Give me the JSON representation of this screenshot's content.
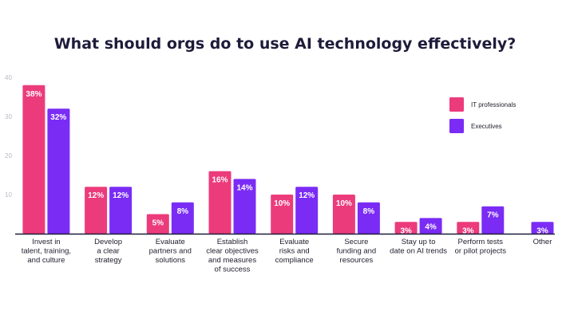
{
  "chart_data": {
    "type": "bar",
    "title": "What should orgs do to use AI technology effectively?",
    "categories": [
      [
        "Invest in",
        "talent, training,",
        "and culture"
      ],
      [
        "Develop",
        "a clear",
        "strategy"
      ],
      [
        "Evaluate",
        "partners and",
        "solutions"
      ],
      [
        "Establish",
        "clear objectives",
        "and measures",
        "of success"
      ],
      [
        "Evaluate",
        "risks and",
        "compliance"
      ],
      [
        "Secure",
        "funding and",
        "resources"
      ],
      [
        "Stay up to",
        "date on AI trends"
      ],
      [
        "Perform tests",
        "or pilot projects"
      ],
      [
        "Other"
      ]
    ],
    "series": [
      {
        "name": "IT professionals",
        "color": "#ec3b7b",
        "values": [
          38,
          12,
          5,
          16,
          10,
          10,
          3,
          3,
          null
        ]
      },
      {
        "name": "Executives",
        "color": "#7a2cf5",
        "values": [
          32,
          12,
          8,
          14,
          12,
          8,
          4,
          7,
          3
        ]
      }
    ],
    "value_labels": [
      [
        "38%",
        "12%",
        "5%",
        "16%",
        "10%",
        "10%",
        "3%",
        "3%",
        null
      ],
      [
        "32%",
        "12%",
        "8%",
        "14%",
        "12%",
        "8%",
        "4%",
        "7%",
        "3%"
      ]
    ],
    "ylim": [
      0,
      40
    ],
    "yticks": [
      10,
      20,
      30,
      40
    ],
    "ytick_labels": [
      "10",
      "20",
      "30",
      "40"
    ],
    "legend_position": "top-right",
    "grid": false
  }
}
